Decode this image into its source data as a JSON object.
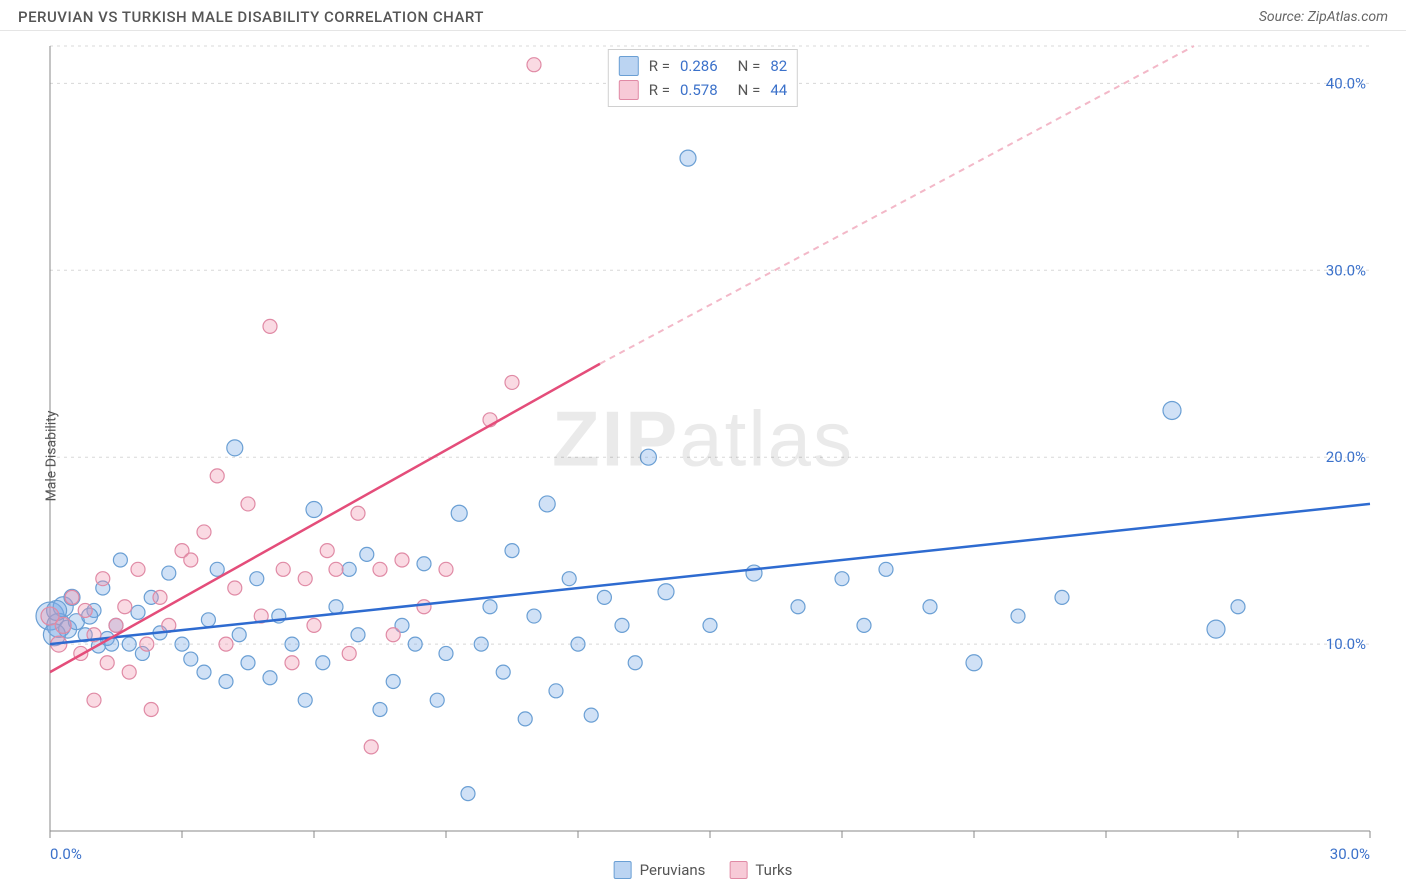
{
  "title": "PERUVIAN VS TURKISH MALE DISABILITY CORRELATION CHART",
  "source": "Source: ZipAtlas.com",
  "watermark": {
    "bold": "ZIP",
    "light": "atlas"
  },
  "ylabel": "Male Disability",
  "chart": {
    "type": "scatter",
    "background_color": "#ffffff",
    "grid_color": "#d8d8d8",
    "axis_color": "#888888",
    "label_color": "#3b71ca",
    "label_fontsize": 15,
    "xlim": [
      0,
      30
    ],
    "ylim": [
      0,
      42
    ],
    "x_ticks": [
      0,
      3,
      6,
      9,
      12,
      15,
      18,
      21,
      24,
      27,
      30
    ],
    "x_tick_labels": {
      "0": "0.0%",
      "30": "30.0%"
    },
    "y_ticks": [
      10,
      20,
      30,
      40
    ],
    "y_tick_labels": {
      "10": "10.0%",
      "20": "20.0%",
      "30": "30.0%",
      "40": "40.0%"
    },
    "series": [
      {
        "name": "Peruvians",
        "legend_label": "Peruvians",
        "color_fill": "rgba(120,170,230,0.35)",
        "color_stroke": "#6a9fd4",
        "marker_radius_min": 6,
        "marker_radius_max": 14,
        "R": "0.286",
        "N": "82",
        "trend": {
          "x1": 0,
          "y1": 10.0,
          "x2": 30,
          "y2": 17.5,
          "color": "#2e6bd0",
          "width": 2.5,
          "dash": "none"
        },
        "points": [
          [
            0.0,
            11.5,
            14
          ],
          [
            0.2,
            11.0,
            12
          ],
          [
            0.3,
            12.0,
            10
          ],
          [
            0.4,
            10.8,
            9
          ],
          [
            0.6,
            11.2,
            8
          ],
          [
            0.8,
            10.5,
            7
          ],
          [
            1.0,
            11.8,
            7
          ],
          [
            1.1,
            9.9,
            7
          ],
          [
            1.2,
            13.0,
            7
          ],
          [
            1.3,
            10.3,
            7
          ],
          [
            1.5,
            11.0,
            7
          ],
          [
            1.6,
            14.5,
            7
          ],
          [
            1.8,
            10.0,
            7
          ],
          [
            2.0,
            11.7,
            7
          ],
          [
            2.1,
            9.5,
            7
          ],
          [
            2.3,
            12.5,
            7
          ],
          [
            2.5,
            10.6,
            7
          ],
          [
            2.7,
            13.8,
            7
          ],
          [
            3.0,
            10.0,
            7
          ],
          [
            3.2,
            9.2,
            7
          ],
          [
            3.5,
            8.5,
            7
          ],
          [
            3.6,
            11.3,
            7
          ],
          [
            3.8,
            14.0,
            7
          ],
          [
            4.0,
            8.0,
            7
          ],
          [
            4.2,
            20.5,
            8
          ],
          [
            4.3,
            10.5,
            7
          ],
          [
            4.5,
            9.0,
            7
          ],
          [
            4.7,
            13.5,
            7
          ],
          [
            5.0,
            8.2,
            7
          ],
          [
            5.2,
            11.5,
            7
          ],
          [
            5.5,
            10.0,
            7
          ],
          [
            5.8,
            7.0,
            7
          ],
          [
            6.0,
            17.2,
            8
          ],
          [
            6.2,
            9.0,
            7
          ],
          [
            6.5,
            12.0,
            7
          ],
          [
            6.8,
            14.0,
            7
          ],
          [
            7.0,
            10.5,
            7
          ],
          [
            7.2,
            14.8,
            7
          ],
          [
            7.5,
            6.5,
            7
          ],
          [
            7.8,
            8.0,
            7
          ],
          [
            8.0,
            11.0,
            7
          ],
          [
            8.3,
            10.0,
            7
          ],
          [
            8.5,
            14.3,
            7
          ],
          [
            8.8,
            7.0,
            7
          ],
          [
            9.0,
            9.5,
            7
          ],
          [
            9.3,
            17.0,
            8
          ],
          [
            9.5,
            2.0,
            7
          ],
          [
            9.8,
            10.0,
            7
          ],
          [
            10.0,
            12.0,
            7
          ],
          [
            10.3,
            8.5,
            7
          ],
          [
            10.5,
            15.0,
            7
          ],
          [
            10.8,
            6.0,
            7
          ],
          [
            11.0,
            11.5,
            7
          ],
          [
            11.3,
            17.5,
            8
          ],
          [
            11.5,
            7.5,
            7
          ],
          [
            11.8,
            13.5,
            7
          ],
          [
            12.0,
            10.0,
            7
          ],
          [
            12.3,
            6.2,
            7
          ],
          [
            12.6,
            12.5,
            7
          ],
          [
            13.0,
            11.0,
            7
          ],
          [
            13.3,
            9.0,
            7
          ],
          [
            13.6,
            20.0,
            8
          ],
          [
            14.0,
            12.8,
            8
          ],
          [
            14.5,
            36.0,
            8
          ],
          [
            15.0,
            11.0,
            7
          ],
          [
            16.0,
            13.8,
            8
          ],
          [
            17.0,
            12.0,
            7
          ],
          [
            18.0,
            13.5,
            7
          ],
          [
            18.5,
            11.0,
            7
          ],
          [
            19.0,
            14.0,
            7
          ],
          [
            20.0,
            12.0,
            7
          ],
          [
            21.0,
            9.0,
            8
          ],
          [
            22.0,
            11.5,
            7
          ],
          [
            23.0,
            12.5,
            7
          ],
          [
            25.5,
            22.5,
            9
          ],
          [
            26.5,
            10.8,
            9
          ],
          [
            27.0,
            12.0,
            7
          ],
          [
            0.1,
            10.5,
            11
          ],
          [
            0.15,
            11.8,
            10
          ],
          [
            0.5,
            12.5,
            8
          ],
          [
            0.9,
            11.5,
            8
          ],
          [
            1.4,
            10.0,
            7
          ]
        ]
      },
      {
        "name": "Turks",
        "legend_label": "Turks",
        "color_fill": "rgba(240,150,175,0.35)",
        "color_stroke": "#e08aa5",
        "marker_radius_min": 6,
        "marker_radius_max": 10,
        "R": "0.578",
        "N": "44",
        "trend": {
          "solid": {
            "x1": 0,
            "y1": 8.5,
            "x2": 12.5,
            "y2": 25.0,
            "color": "#e44d7a",
            "width": 2.5
          },
          "dashed": {
            "x1": 12.5,
            "y1": 25.0,
            "x2": 26.0,
            "y2": 42.0,
            "color": "#f3b8c8",
            "width": 2,
            "dash": "6 5"
          }
        },
        "points": [
          [
            0.0,
            11.5,
            9
          ],
          [
            0.2,
            10.0,
            8
          ],
          [
            0.3,
            11.0,
            8
          ],
          [
            0.5,
            12.5,
            7
          ],
          [
            0.7,
            9.5,
            7
          ],
          [
            0.8,
            11.8,
            7
          ],
          [
            1.0,
            10.5,
            7
          ],
          [
            1.2,
            13.5,
            7
          ],
          [
            1.3,
            9.0,
            7
          ],
          [
            1.5,
            11.0,
            7
          ],
          [
            1.7,
            12.0,
            7
          ],
          [
            1.8,
            8.5,
            7
          ],
          [
            2.0,
            14.0,
            7
          ],
          [
            2.2,
            10.0,
            7
          ],
          [
            2.3,
            6.5,
            7
          ],
          [
            2.5,
            12.5,
            7
          ],
          [
            2.7,
            11.0,
            7
          ],
          [
            3.0,
            15.0,
            7
          ],
          [
            3.2,
            14.5,
            7
          ],
          [
            3.5,
            16.0,
            7
          ],
          [
            3.8,
            19.0,
            7
          ],
          [
            4.0,
            10.0,
            7
          ],
          [
            4.2,
            13.0,
            7
          ],
          [
            4.5,
            17.5,
            7
          ],
          [
            4.8,
            11.5,
            7
          ],
          [
            5.0,
            27.0,
            7
          ],
          [
            5.3,
            14.0,
            7
          ],
          [
            5.5,
            9.0,
            7
          ],
          [
            5.8,
            13.5,
            7
          ],
          [
            6.0,
            11.0,
            7
          ],
          [
            6.3,
            15.0,
            7
          ],
          [
            6.5,
            14.0,
            7
          ],
          [
            6.8,
            9.5,
            7
          ],
          [
            7.0,
            17.0,
            7
          ],
          [
            7.3,
            4.5,
            7
          ],
          [
            7.5,
            14.0,
            7
          ],
          [
            7.8,
            10.5,
            7
          ],
          [
            8.0,
            14.5,
            7
          ],
          [
            8.5,
            12.0,
            7
          ],
          [
            9.0,
            14.0,
            7
          ],
          [
            10.0,
            22.0,
            7
          ],
          [
            10.5,
            24.0,
            7
          ],
          [
            11.0,
            41.0,
            7
          ],
          [
            1.0,
            7.0,
            7
          ]
        ]
      }
    ]
  },
  "legend_top": {
    "rows": [
      {
        "swatch_fill": "rgba(120,170,230,0.5)",
        "swatch_border": "#6a9fd4",
        "r_label": "R =",
        "r_val": "0.286",
        "n_label": "N =",
        "n_val": "82"
      },
      {
        "swatch_fill": "rgba(240,150,175,0.5)",
        "swatch_border": "#e08aa5",
        "r_label": "R =",
        "r_val": "0.578",
        "n_label": "N =",
        "n_val": "44"
      }
    ]
  },
  "legend_bottom": {
    "items": [
      {
        "swatch_fill": "rgba(120,170,230,0.5)",
        "swatch_border": "#6a9fd4",
        "label": "Peruvians"
      },
      {
        "swatch_fill": "rgba(240,150,175,0.5)",
        "swatch_border": "#e08aa5",
        "label": "Turks"
      }
    ]
  }
}
